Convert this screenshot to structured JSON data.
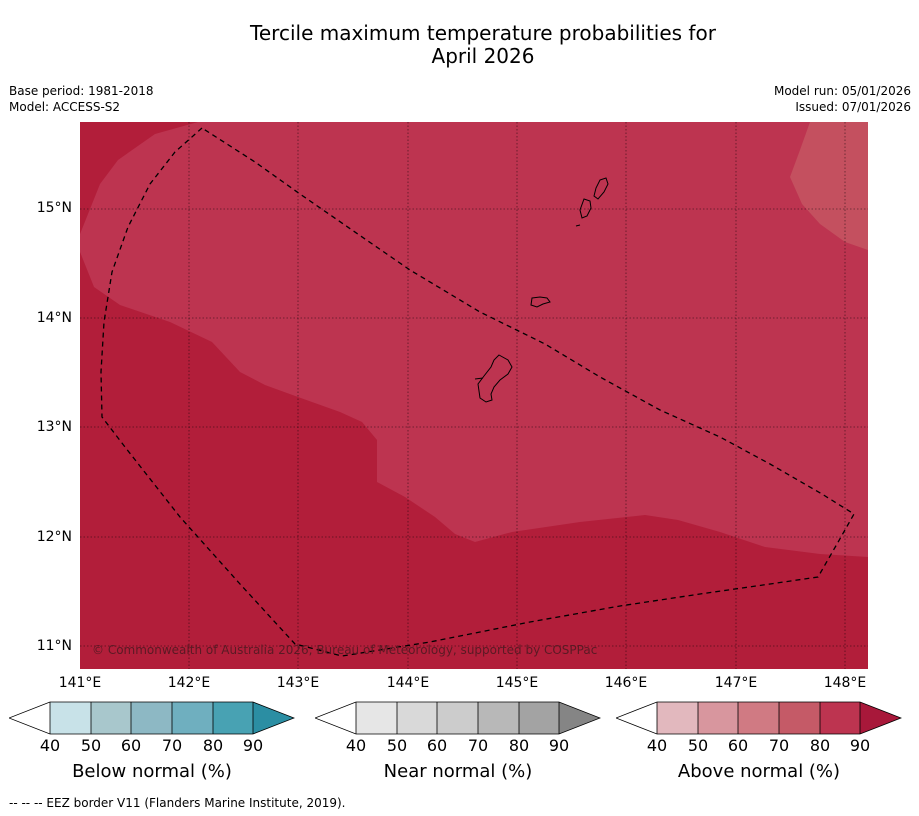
{
  "title_line1": "Tercile maximum temperature probabilities for",
  "title_line2": "April 2026",
  "base_period": "Base period: 1981-2018",
  "model": "Model: ACCESS-S2",
  "model_run": "Model run: 05/01/2026",
  "issued": "Issued: 07/01/2026",
  "copyright": "© Commonwealth of Australia 2026, Bureau of Meteorology, supported by COSPPac",
  "lat_labels": [
    "15°N",
    "14°N",
    "13°N",
    "12°N",
    "11°N"
  ],
  "lon_labels": [
    "141°E",
    "142°E",
    "143°E",
    "144°E",
    "145°E",
    "146°E",
    "147°E",
    "148°E"
  ],
  "colors": {
    "above_80": "#bd3450",
    "above_90": "#b21e3a",
    "above_70": "#c4505f",
    "below": [
      "#ffffff",
      "#c8e2e8",
      "#a8c7cc",
      "#8db8c4",
      "#6fafbf",
      "#48a2b3",
      "#2b8ea3"
    ],
    "near": [
      "#ffffff",
      "#e6e6e6",
      "#d9d9d9",
      "#cccccc",
      "#b8b8b8",
      "#a3a3a3",
      "#858585"
    ],
    "above": [
      "#ffffff",
      "#e2b8be",
      "#d8969e",
      "#d07a83",
      "#c55a67",
      "#bd3450",
      "#a8183a"
    ]
  },
  "colorbars": [
    {
      "label": "Below normal (%)",
      "ticks": [
        "40",
        "50",
        "60",
        "70",
        "80",
        "90"
      ]
    },
    {
      "label": "Near normal (%)",
      "ticks": [
        "40",
        "50",
        "60",
        "70",
        "80",
        "90"
      ]
    },
    {
      "label": "Above normal (%)",
      "ticks": [
        "40",
        "50",
        "60",
        "70",
        "80",
        "90"
      ]
    }
  ],
  "footer": "--  --  -- EEZ border V11 (Flanders Marine Institute, 2019)."
}
